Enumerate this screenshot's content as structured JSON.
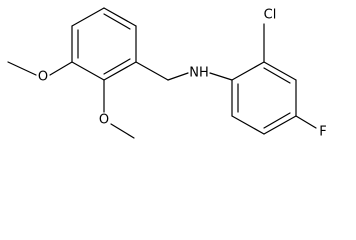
{
  "atoms": {
    "nitrogen": "NH",
    "chlorine": "Cl",
    "fluorine": "F",
    "oxygen_upper": "O",
    "oxygen_lower": "O"
  }
}
